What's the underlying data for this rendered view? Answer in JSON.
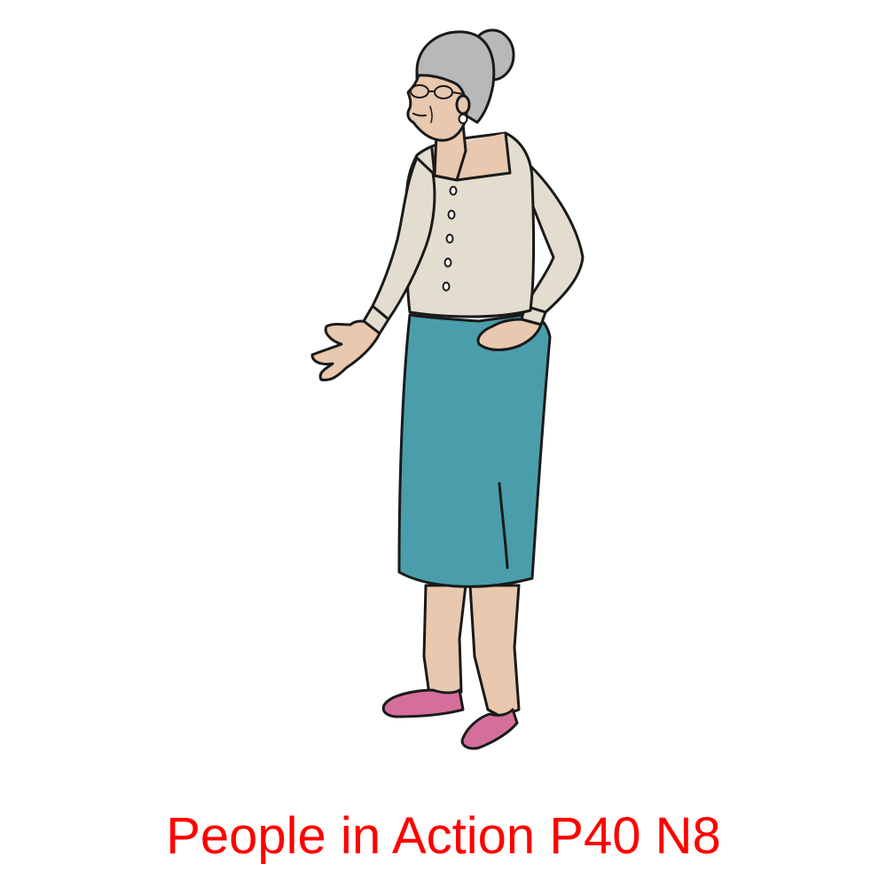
{
  "caption": "People in Action P40 N8",
  "colors": {
    "caption": "#ff0000",
    "cardigan": "#e3ddd0",
    "skirt": "#4a9eab",
    "skin": "#e8c8ae",
    "hair": "#b8b8b8",
    "shoes": "#d46f9c",
    "outline": "#1a1a1a"
  },
  "figure": {
    "subject": "elderly-woman-illustration"
  }
}
